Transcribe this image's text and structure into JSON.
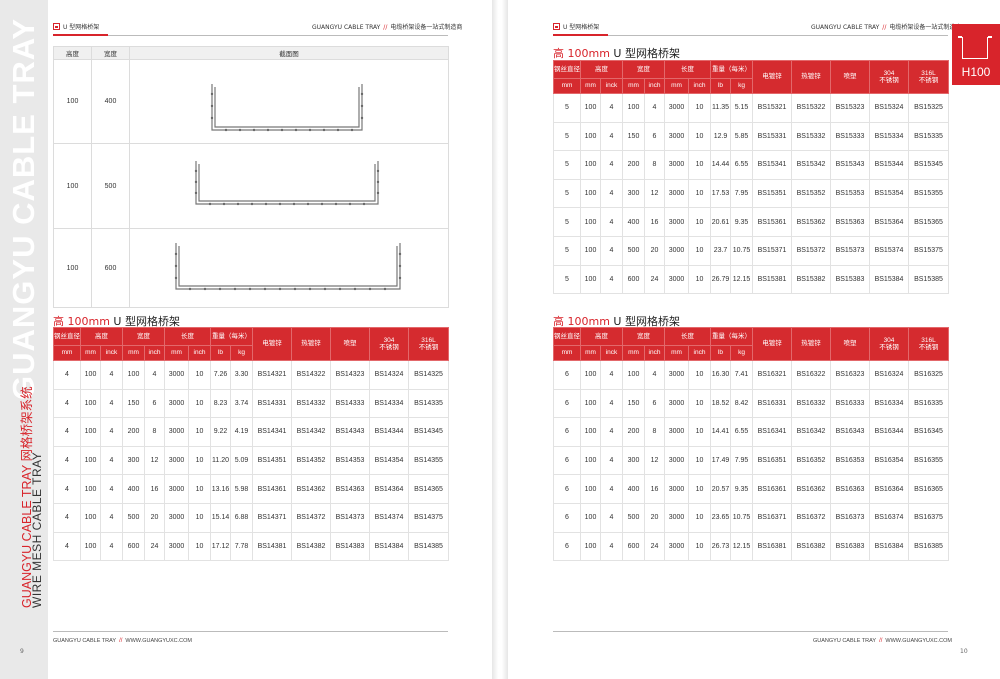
{
  "left_page": {
    "header_left": "U 型网格桥架",
    "header_brand": "GUANGYU CABLE TRAY",
    "header_slogan": "电缆桥架设备一站式制造商",
    "sidebar_big": "GUANGYU CABLE TRAY",
    "sidebar_red": "GUANGYU CABLE TRAY 网格桥架系统",
    "sidebar_dark": "WIRE MESH CABLE TRAY",
    "footer_brand": "GUANGYU CABLE TRAY",
    "footer_url": "WWW.GUANGYUXC.COM",
    "page_number": "9",
    "cross_section_table": {
      "headers": [
        "高度",
        "宽度",
        "截面图"
      ],
      "rows": [
        {
          "height": "100",
          "width": "400"
        },
        {
          "height": "100",
          "width": "500"
        },
        {
          "height": "100",
          "width": "600"
        }
      ]
    },
    "section": {
      "title_red": "高 100mm",
      "title_rest": " U 型网格桥架",
      "headers_top": [
        "钢丝直径",
        "高度",
        "宽度",
        "长度",
        "重量（每米）"
      ],
      "headers_unit": [
        "mm",
        "mm",
        "inck",
        "mm",
        "inch",
        "mm",
        "inch",
        "lb",
        "kg"
      ],
      "finishes": [
        "电镀锌",
        "热镀锌",
        "喷塑",
        "304\n不锈钢",
        "316L\n不锈钢"
      ],
      "rows": [
        [
          "4",
          "100",
          "4",
          "100",
          "4",
          "3000",
          "10",
          "7.26",
          "3.30",
          "BS14321",
          "BS14322",
          "BS14323",
          "BS14324",
          "BS14325"
        ],
        [
          "4",
          "100",
          "4",
          "150",
          "6",
          "3000",
          "10",
          "8.23",
          "3.74",
          "BS14331",
          "BS14332",
          "BS14333",
          "BS14334",
          "BS14335"
        ],
        [
          "4",
          "100",
          "4",
          "200",
          "8",
          "3000",
          "10",
          "9.22",
          "4.19",
          "BS14341",
          "BS14342",
          "BS14343",
          "BS14344",
          "BS14345"
        ],
        [
          "4",
          "100",
          "4",
          "300",
          "12",
          "3000",
          "10",
          "11.20",
          "5.09",
          "BS14351",
          "BS14352",
          "BS14353",
          "BS14354",
          "BS14355"
        ],
        [
          "4",
          "100",
          "4",
          "400",
          "16",
          "3000",
          "10",
          "13.16",
          "5.98",
          "BS14361",
          "BS14362",
          "BS14363",
          "BS14364",
          "BS14365"
        ],
        [
          "4",
          "100",
          "4",
          "500",
          "20",
          "3000",
          "10",
          "15.14",
          "6.88",
          "BS14371",
          "BS14372",
          "BS14373",
          "BS14374",
          "BS14375"
        ],
        [
          "4",
          "100",
          "4",
          "600",
          "24",
          "3000",
          "10",
          "17.12",
          "7.78",
          "BS14381",
          "BS14382",
          "BS14383",
          "BS14384",
          "BS14385"
        ]
      ]
    }
  },
  "right_page": {
    "header_left": "U 型网格桥架",
    "header_brand": "GUANGYU CABLE TRAY",
    "header_slogan": "电缆桥架设备一站式制造商",
    "tab_label": "H100",
    "footer_brand": "GUANGYU CABLE TRAY",
    "footer_url": "WWW.GUANGYUXC.COM",
    "page_number": "10",
    "section1": {
      "title_red": "高 100mm",
      "title_rest": " U 型网格桥架",
      "headers_top": [
        "钢丝直径",
        "高度",
        "宽度",
        "长度",
        "重量（每米）"
      ],
      "headers_unit": [
        "mm",
        "mm",
        "inck",
        "mm",
        "inch",
        "mm",
        "inch",
        "lb",
        "kg"
      ],
      "finishes": [
        "电镀锌",
        "热镀锌",
        "喷塑",
        "304\n不锈钢",
        "316L\n不锈钢"
      ],
      "rows": [
        [
          "5",
          "100",
          "4",
          "100",
          "4",
          "3000",
          "10",
          "11.35",
          "5.15",
          "BS15321",
          "BS15322",
          "BS15323",
          "BS15324",
          "BS15325"
        ],
        [
          "5",
          "100",
          "4",
          "150",
          "6",
          "3000",
          "10",
          "12.9",
          "5.85",
          "BS15331",
          "BS15332",
          "BS15333",
          "BS15334",
          "BS15335"
        ],
        [
          "5",
          "100",
          "4",
          "200",
          "8",
          "3000",
          "10",
          "14.44",
          "6.55",
          "BS15341",
          "BS15342",
          "BS15343",
          "BS15344",
          "BS15345"
        ],
        [
          "5",
          "100",
          "4",
          "300",
          "12",
          "3000",
          "10",
          "17.53",
          "7.95",
          "BS15351",
          "BS15352",
          "BS15353",
          "BS15354",
          "BS15355"
        ],
        [
          "5",
          "100",
          "4",
          "400",
          "16",
          "3000",
          "10",
          "20.61",
          "9.35",
          "BS15361",
          "BS15362",
          "BS15363",
          "BS15364",
          "BS15365"
        ],
        [
          "5",
          "100",
          "4",
          "500",
          "20",
          "3000",
          "10",
          "23.7",
          "10.75",
          "BS15371",
          "BS15372",
          "BS15373",
          "BS15374",
          "BS15375"
        ],
        [
          "5",
          "100",
          "4",
          "600",
          "24",
          "3000",
          "10",
          "26.79",
          "12.15",
          "BS15381",
          "BS15382",
          "BS15383",
          "BS15384",
          "BS15385"
        ]
      ]
    },
    "section2": {
      "title_red": "高 100mm",
      "title_rest": " U 型网格桥架",
      "headers_top": [
        "钢丝直径",
        "高度",
        "宽度",
        "长度",
        "重量（每米）"
      ],
      "headers_unit": [
        "mm",
        "mm",
        "inck",
        "mm",
        "inch",
        "mm",
        "inch",
        "lb",
        "kg"
      ],
      "finishes": [
        "电镀锌",
        "热镀锌",
        "喷塑",
        "304\n不锈钢",
        "316L\n不锈钢"
      ],
      "rows": [
        [
          "6",
          "100",
          "4",
          "100",
          "4",
          "3000",
          "10",
          "16.30",
          "7.41",
          "BS16321",
          "BS16322",
          "BS16323",
          "BS16324",
          "BS16325"
        ],
        [
          "6",
          "100",
          "4",
          "150",
          "6",
          "3000",
          "10",
          "18.52",
          "8.42",
          "BS16331",
          "BS16332",
          "BS16333",
          "BS16334",
          "BS16335"
        ],
        [
          "6",
          "100",
          "4",
          "200",
          "8",
          "3000",
          "10",
          "14.41",
          "6.55",
          "BS16341",
          "BS16342",
          "BS16343",
          "BS16344",
          "BS16345"
        ],
        [
          "6",
          "100",
          "4",
          "300",
          "12",
          "3000",
          "10",
          "17.49",
          "7.95",
          "BS16351",
          "BS16352",
          "BS16353",
          "BS16354",
          "BS16355"
        ],
        [
          "6",
          "100",
          "4",
          "400",
          "16",
          "3000",
          "10",
          "20.57",
          "9.35",
          "BS16361",
          "BS16362",
          "BS16363",
          "BS16364",
          "BS16365"
        ],
        [
          "6",
          "100",
          "4",
          "500",
          "20",
          "3000",
          "10",
          "23.65",
          "10.75",
          "BS16371",
          "BS16372",
          "BS16373",
          "BS16374",
          "BS16375"
        ],
        [
          "6",
          "100",
          "4",
          "600",
          "24",
          "3000",
          "10",
          "26.73",
          "12.15",
          "BS16381",
          "BS16382",
          "BS16383",
          "BS16384",
          "BS16385"
        ]
      ]
    }
  }
}
